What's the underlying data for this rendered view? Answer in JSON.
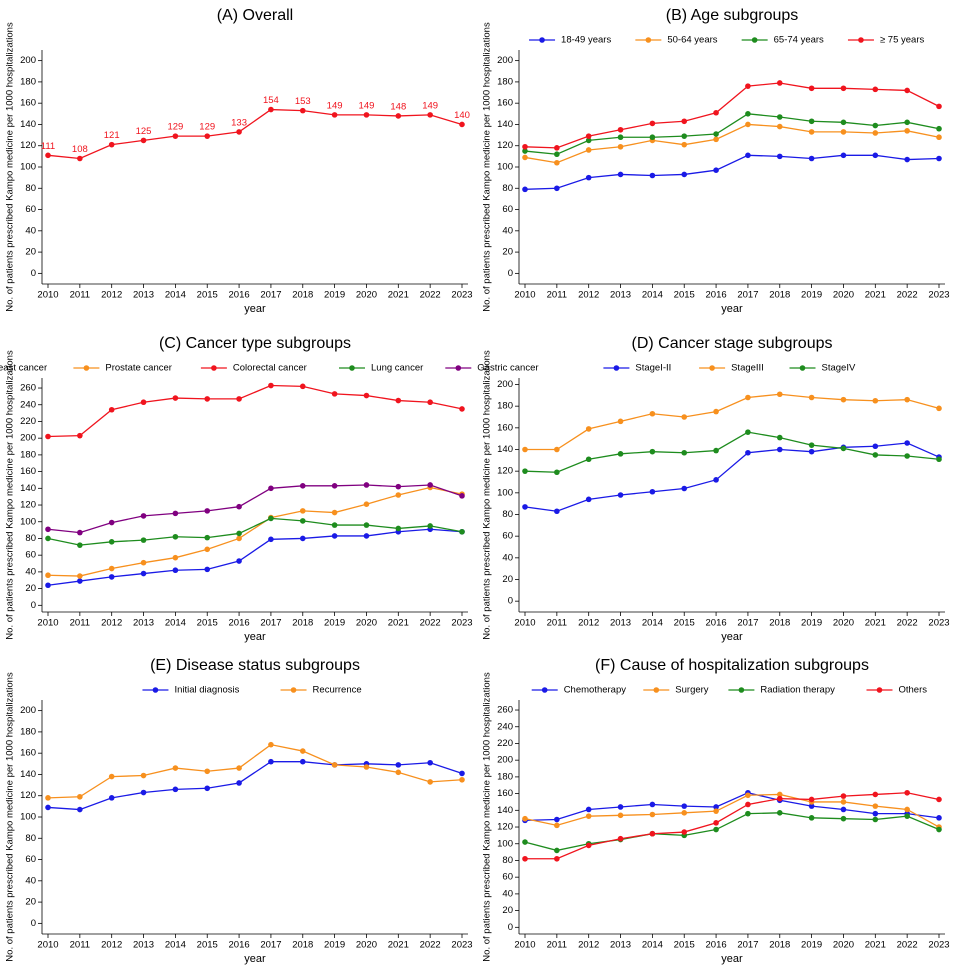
{
  "chart_data": [
    {
      "type": "line",
      "title": "(A) Overall",
      "xlabel": "year",
      "ylabel": "No. of patients prescribed Kampo medicine per 1000 hospitalizations",
      "categories": [
        "2010",
        "2011",
        "2012",
        "2013",
        "2014",
        "2015",
        "2016",
        "2017",
        "2018",
        "2019",
        "2020",
        "2021",
        "2022",
        "2023"
      ],
      "values": [
        111,
        108,
        121,
        125,
        129,
        129,
        133,
        154,
        153,
        149,
        149,
        148,
        149,
        140
      ],
      "color": "#f0141e",
      "data_labels": true,
      "ylim": [
        -10,
        210
      ],
      "yticks": [
        0,
        20,
        40,
        60,
        80,
        100,
        120,
        140,
        160,
        180,
        200
      ]
    },
    {
      "type": "line",
      "title": "(B) Age subgroups",
      "xlabel": "year",
      "ylabel": "No. of patients prescribed Kampo medicine per 1000 hospitalizations",
      "categories": [
        "2010",
        "2011",
        "2012",
        "2013",
        "2014",
        "2015",
        "2016",
        "2017",
        "2018",
        "2019",
        "2020",
        "2021",
        "2022",
        "2023"
      ],
      "legend": "top",
      "ylim": [
        -10,
        210
      ],
      "yticks": [
        0,
        20,
        40,
        60,
        80,
        100,
        120,
        140,
        160,
        180,
        200
      ],
      "series": [
        {
          "name": "18-49 years",
          "color": "#1a1ae6",
          "values": [
            79,
            80,
            90,
            93,
            92,
            93,
            97,
            111,
            110,
            108,
            111,
            111,
            107,
            108
          ]
        },
        {
          "name": "50-64 years",
          "color": "#f7901e",
          "values": [
            109,
            104,
            116,
            119,
            125,
            121,
            126,
            140,
            138,
            133,
            133,
            132,
            134,
            128
          ]
        },
        {
          "name": "65-74 years",
          "color": "#1e8c1e",
          "values": [
            115,
            112,
            125,
            128,
            128,
            129,
            131,
            150,
            147,
            143,
            142,
            139,
            142,
            136
          ]
        },
        {
          "name": "≥ 75 years",
          "color": "#f0141e",
          "values": [
            119,
            118,
            129,
            135,
            141,
            143,
            151,
            176,
            179,
            174,
            174,
            173,
            172,
            157
          ]
        }
      ]
    },
    {
      "type": "line",
      "title": "(C) Cancer type subgroups",
      "xlabel": "year",
      "ylabel": "No. of patients prescribed Kampo medicine per 1000 hospitalizations",
      "categories": [
        "2010",
        "2011",
        "2012",
        "2013",
        "2014",
        "2015",
        "2016",
        "2017",
        "2018",
        "2019",
        "2020",
        "2021",
        "2022",
        "2023"
      ],
      "legend": "top",
      "ylim": [
        -8,
        272
      ],
      "yticks": [
        0,
        20,
        40,
        60,
        80,
        100,
        120,
        140,
        160,
        180,
        200,
        220,
        240,
        260
      ],
      "series": [
        {
          "name": "Breast cancer",
          "color": "#1a1ae6",
          "values": [
            24,
            29,
            34,
            38,
            42,
            43,
            53,
            79,
            80,
            83,
            83,
            88,
            91,
            88
          ]
        },
        {
          "name": "Prostate cancer",
          "color": "#f7901e",
          "values": [
            36,
            35,
            44,
            51,
            57,
            67,
            80,
            105,
            113,
            111,
            121,
            132,
            141,
            133
          ]
        },
        {
          "name": "Colorectal cancer",
          "color": "#f0141e",
          "values": [
            202,
            203,
            234,
            243,
            248,
            247,
            247,
            263,
            262,
            253,
            251,
            245,
            243,
            235
          ]
        },
        {
          "name": "Lung cancer",
          "color": "#1e8c1e",
          "values": [
            80,
            72,
            76,
            78,
            82,
            81,
            86,
            104,
            101,
            96,
            96,
            92,
            95,
            88
          ]
        },
        {
          "name": "Gastric cancer",
          "color": "#800080",
          "values": [
            91,
            87,
            99,
            107,
            110,
            113,
            118,
            140,
            143,
            143,
            144,
            142,
            144,
            131
          ]
        }
      ]
    },
    {
      "type": "line",
      "title": "(D) Cancer stage subgroups",
      "xlabel": "year",
      "ylabel": "No. of patients prescribed Kampo medicine per 1000 hospitalizations",
      "categories": [
        "2010",
        "2011",
        "2012",
        "2013",
        "2014",
        "2015",
        "2016",
        "2017",
        "2018",
        "2019",
        "2020",
        "2021",
        "2022",
        "2023"
      ],
      "legend": "top",
      "ylim": [
        -10,
        206
      ],
      "yticks": [
        0,
        20,
        40,
        60,
        80,
        100,
        120,
        140,
        160,
        180,
        200
      ],
      "series": [
        {
          "name": "StageI-II",
          "color": "#1a1ae6",
          "values": [
            87,
            83,
            94,
            98,
            101,
            104,
            112,
            137,
            140,
            138,
            142,
            143,
            146,
            133
          ]
        },
        {
          "name": "StageIII",
          "color": "#f7901e",
          "values": [
            140,
            140,
            159,
            166,
            173,
            170,
            175,
            188,
            191,
            188,
            186,
            185,
            186,
            178
          ]
        },
        {
          "name": "StageIV",
          "color": "#1e8c1e",
          "values": [
            120,
            119,
            131,
            136,
            138,
            137,
            139,
            156,
            151,
            144,
            141,
            135,
            134,
            131
          ]
        }
      ]
    },
    {
      "type": "line",
      "title": "(E) Disease status subgroups",
      "xlabel": "year",
      "ylabel": "No. of patients prescribed Kampo medicine per 1000 hospitalizations",
      "categories": [
        "2010",
        "2011",
        "2012",
        "2013",
        "2014",
        "2015",
        "2016",
        "2017",
        "2018",
        "2019",
        "2020",
        "2021",
        "2022",
        "2023"
      ],
      "legend": "top",
      "ylim": [
        -10,
        210
      ],
      "yticks": [
        0,
        20,
        40,
        60,
        80,
        100,
        120,
        140,
        160,
        180,
        200
      ],
      "series": [
        {
          "name": "Initial diagnosis",
          "color": "#1a1ae6",
          "values": [
            109,
            107,
            118,
            123,
            126,
            127,
            132,
            152,
            152,
            149,
            150,
            149,
            151,
            141
          ]
        },
        {
          "name": "Recurrence",
          "color": "#f7901e",
          "values": [
            118,
            119,
            138,
            139,
            146,
            143,
            146,
            168,
            162,
            149,
            147,
            142,
            133,
            135
          ]
        }
      ]
    },
    {
      "type": "line",
      "title": "(F) Cause of hospitalization subgroups",
      "xlabel": "year",
      "ylabel": "No. of patients prescribed Kampo medicine per 1000 hospitalizations",
      "categories": [
        "2010",
        "2011",
        "2012",
        "2013",
        "2014",
        "2015",
        "2016",
        "2017",
        "2018",
        "2019",
        "2020",
        "2021",
        "2022",
        "2023"
      ],
      "legend": "top",
      "ylim": [
        -8,
        272
      ],
      "yticks": [
        0,
        20,
        40,
        60,
        80,
        100,
        120,
        140,
        160,
        180,
        200,
        220,
        240,
        260
      ],
      "series": [
        {
          "name": "Chemotherapy",
          "color": "#1a1ae6",
          "values": [
            128,
            129,
            141,
            144,
            147,
            145,
            144,
            161,
            152,
            145,
            141,
            136,
            136,
            131
          ]
        },
        {
          "name": "Surgery",
          "color": "#f7901e",
          "values": [
            130,
            122,
            133,
            134,
            135,
            137,
            139,
            158,
            159,
            150,
            150,
            145,
            141,
            120
          ]
        },
        {
          "name": "Radiation therapy",
          "color": "#1e8c1e",
          "values": [
            102,
            92,
            100,
            105,
            112,
            110,
            117,
            136,
            137,
            131,
            130,
            129,
            133,
            117
          ]
        },
        {
          "name": "Others",
          "color": "#f0141e",
          "values": [
            82,
            82,
            98,
            106,
            112,
            114,
            125,
            147,
            154,
            153,
            157,
            159,
            161,
            153
          ]
        }
      ]
    }
  ]
}
